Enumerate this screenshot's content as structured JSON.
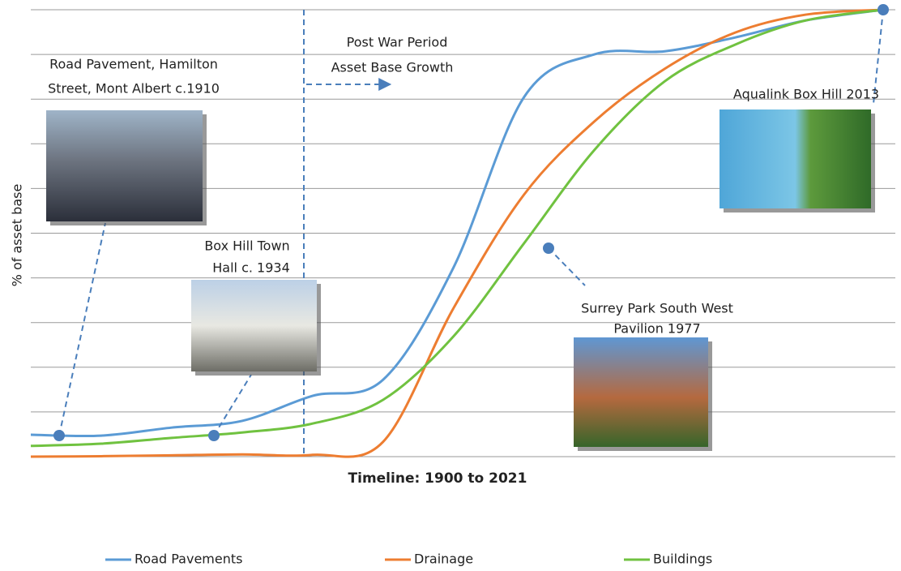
{
  "chart_data": {
    "type": "line",
    "y_label": "% of asset base",
    "x_label": "Timeline: 1900 to 2021",
    "x": [
      1900,
      1910,
      1920,
      1930,
      1940,
      1950,
      1960,
      1970,
      1980,
      1990,
      2000,
      2010,
      2021
    ],
    "xlim": [
      1900,
      2021
    ],
    "ylim": [
      0,
      100
    ],
    "yticks": [
      0,
      10,
      20,
      30,
      40,
      50,
      60,
      70,
      80,
      90,
      100
    ],
    "grid": true,
    "legend": "bottom",
    "series": [
      {
        "name": "Road Pavements",
        "color": "#5b9bd5",
        "values": [
          4.9,
          4.7,
          6.5,
          8.0,
          13.6,
          17.2,
          42.3,
          80.4,
          90.0,
          90.7,
          93.8,
          97.6,
          100
        ]
      },
      {
        "name": "Drainage",
        "color": "#ed7d31",
        "values": [
          0,
          0.1,
          0.3,
          0.5,
          0.4,
          3.3,
          33.2,
          58.6,
          75.0,
          86.8,
          94.9,
          98.9,
          100
        ]
      },
      {
        "name": "Buildings",
        "color": "#70c240",
        "values": [
          2.4,
          2.9,
          4.2,
          5.4,
          7.4,
          12.7,
          26.9,
          47.7,
          68.6,
          84.0,
          92.2,
          97.6,
          100
        ]
      }
    ],
    "annotations": [
      {
        "text": [
          "Road Pavement, Hamilton",
          "Street, Mont Albert c.1910"
        ]
      },
      {
        "text": [
          "Box Hill Town",
          "Hall c. 1934"
        ]
      },
      {
        "text": [
          "Post War Period",
          "Asset Base Growth"
        ]
      },
      {
        "text": [
          "Aqualink Box Hill 2013"
        ]
      },
      {
        "text": [
          "Surrey Park South West",
          "Pavilion 1977"
        ]
      }
    ]
  }
}
